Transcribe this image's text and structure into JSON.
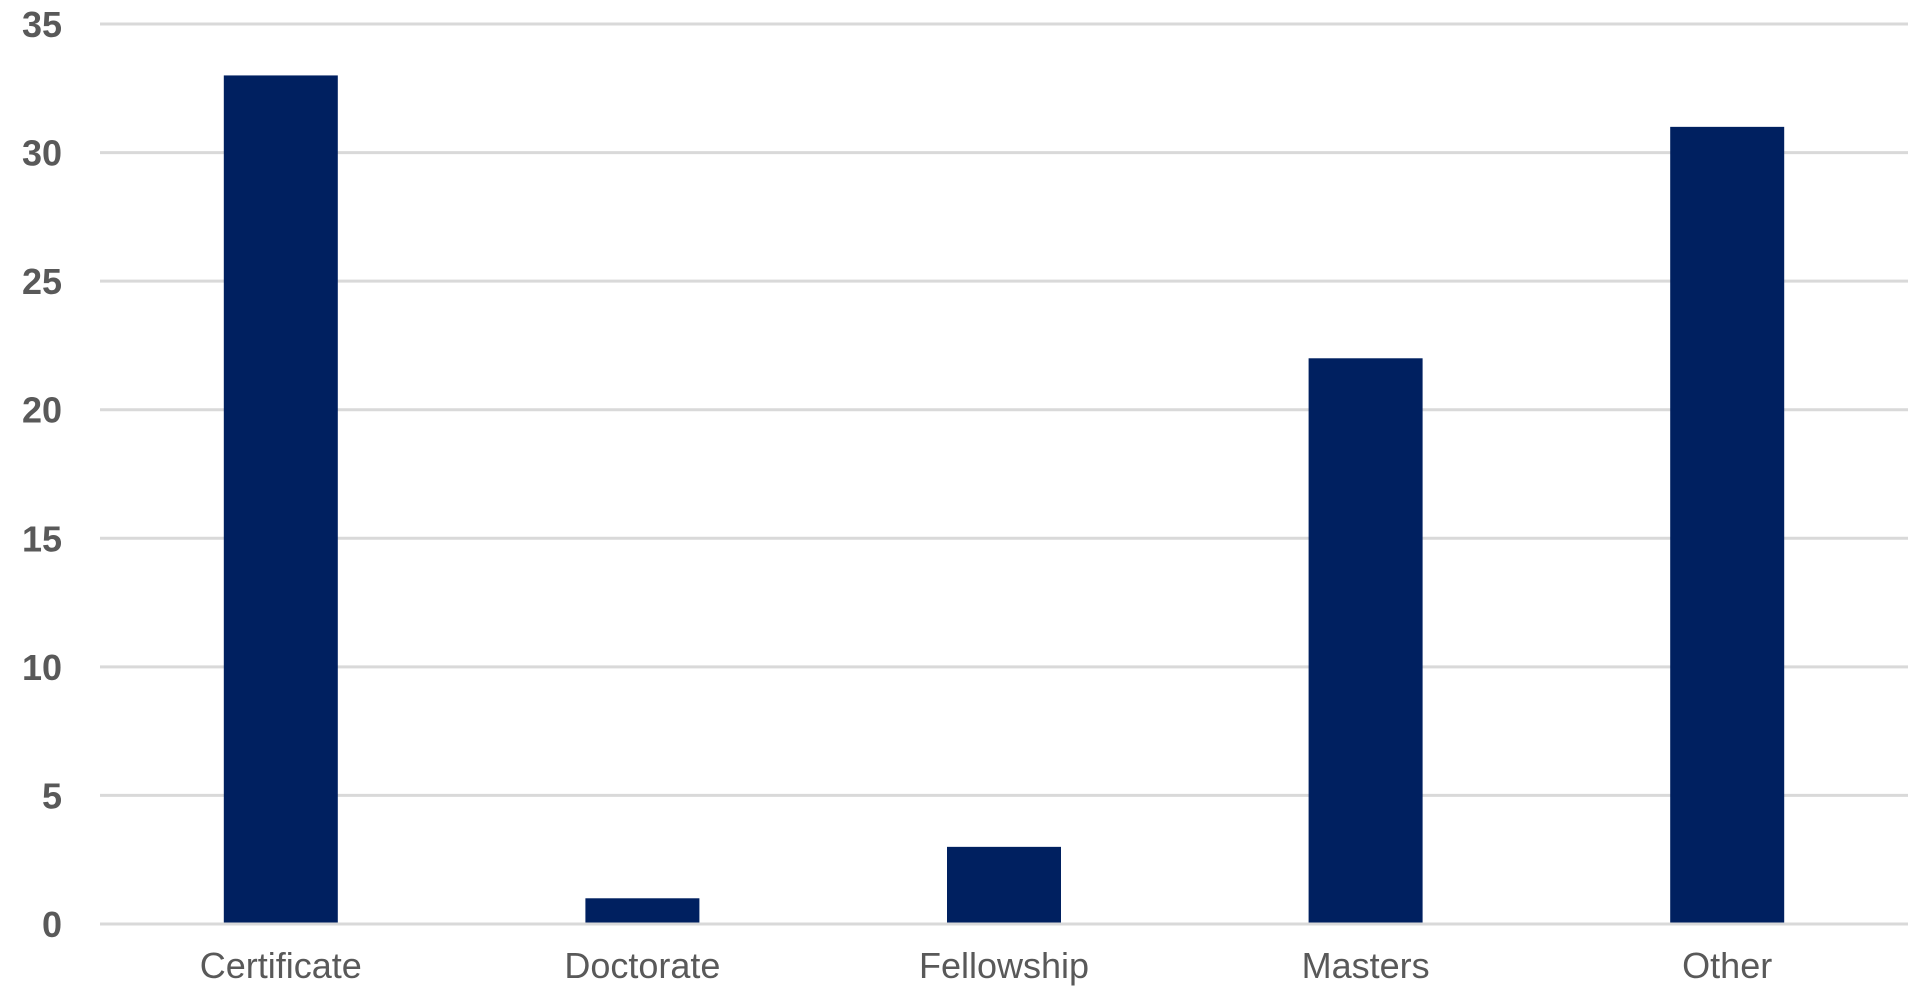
{
  "chart_data": {
    "type": "bar",
    "title": "",
    "xlabel": "",
    "ylabel": "",
    "categories": [
      "Certificate",
      "Doctorate",
      "Fellowship",
      "Masters",
      "Other"
    ],
    "values": [
      33,
      1,
      3,
      22,
      31
    ],
    "ylim": [
      0,
      35
    ],
    "yticks": [
      0,
      5,
      10,
      15,
      20,
      25,
      30,
      35
    ],
    "grid": true,
    "legend": "none",
    "bar_color": "#002060"
  }
}
